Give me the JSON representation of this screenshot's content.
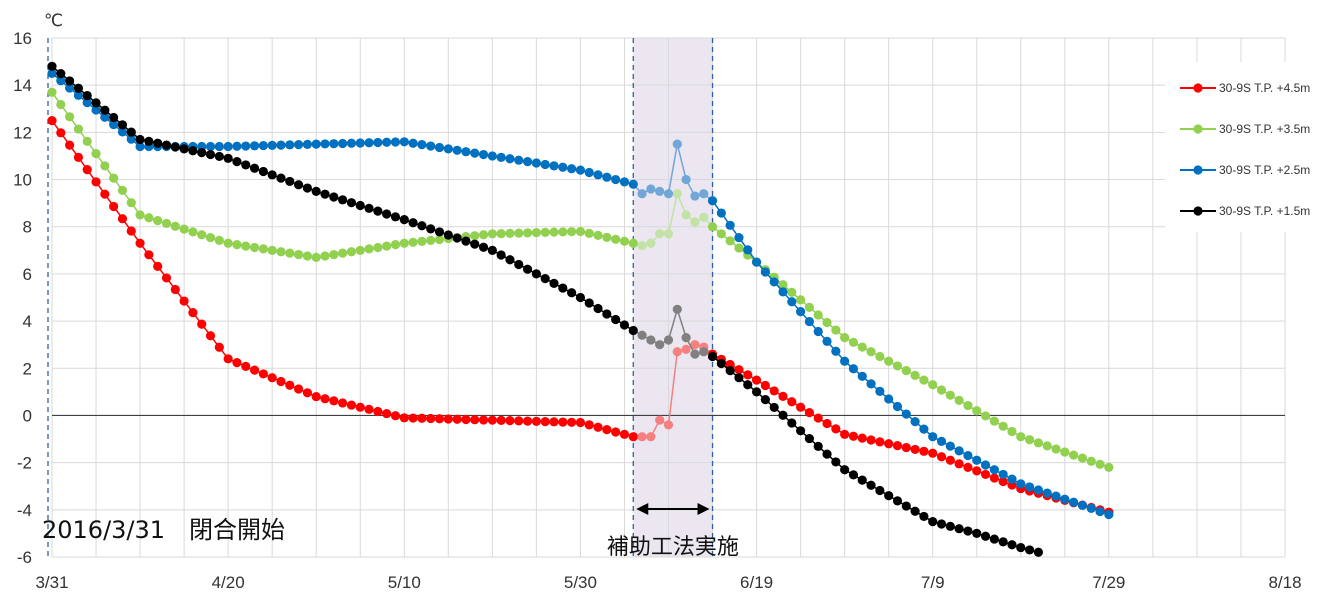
{
  "chart_data": {
    "type": "line",
    "ylabel": "℃",
    "ylim": [
      -6,
      16
    ],
    "yticks": [
      16,
      14,
      12,
      10,
      8,
      6,
      4,
      2,
      0,
      -2,
      -4,
      -6
    ],
    "xlim_day": [
      0,
      140
    ],
    "xticks": [
      {
        "label": "3/31",
        "day": 0
      },
      {
        "label": "4/20",
        "day": 20
      },
      {
        "label": "5/10",
        "day": 40
      },
      {
        "label": "5/30",
        "day": 60
      },
      {
        "label": "6/19",
        "day": 80
      },
      {
        "label": "7/9",
        "day": 100
      },
      {
        "label": "7/29",
        "day": 120
      },
      {
        "label": "8/18",
        "day": 140
      }
    ],
    "grid": true,
    "legend_position": "right",
    "highlight_span": {
      "start_day": 66,
      "end_day": 75,
      "color": "#ebe6f0"
    },
    "vertical_lines_day": [
      0,
      66,
      75
    ],
    "annotations": [
      {
        "text": "2016/3/31　閉合開始",
        "day": -1,
        "value": -4.9
      },
      {
        "text": "補助工法実施",
        "day": 70.5,
        "value": -5.5
      }
    ],
    "series": [
      {
        "name": "30-9S T.P. +4.5m",
        "color": "#ff0000",
        "faded_color": "#f48080",
        "x": [
          0,
          10,
          20,
          30,
          40,
          50,
          60,
          66,
          67,
          68,
          69,
          70,
          71,
          72,
          73,
          74,
          75,
          80,
          90,
          100,
          110,
          120
        ],
        "values": [
          12.5,
          7.3,
          2.4,
          0.8,
          -0.1,
          -0.2,
          -0.3,
          -0.9,
          -0.9,
          -0.9,
          -0.2,
          -0.4,
          2.7,
          2.8,
          3.0,
          2.9,
          2.6,
          1.5,
          -0.8,
          -1.6,
          -3.1,
          -4.1
        ]
      },
      {
        "name": "30-9S T.P. +3.5m",
        "color": "#92d050",
        "faded_color": "#c3e3a6",
        "x": [
          0,
          10,
          20,
          30,
          40,
          50,
          60,
          66,
          67,
          68,
          69,
          70,
          71,
          72,
          73,
          74,
          75,
          80,
          90,
          100,
          110,
          120
        ],
        "values": [
          13.7,
          8.5,
          7.3,
          6.7,
          7.3,
          7.7,
          7.8,
          7.3,
          7.2,
          7.3,
          7.7,
          7.7,
          9.4,
          8.5,
          8.2,
          8.4,
          8.0,
          6.5,
          3.3,
          1.3,
          -0.9,
          -2.2
        ]
      },
      {
        "name": "30-9S T.P. +2.5m",
        "color": "#0070c0",
        "faded_color": "#70a7d8",
        "x": [
          0,
          10,
          20,
          30,
          40,
          50,
          60,
          66,
          67,
          68,
          69,
          70,
          71,
          72,
          73,
          74,
          75,
          80,
          90,
          100,
          110,
          120
        ],
        "values": [
          14.5,
          11.4,
          11.4,
          11.5,
          11.6,
          11.0,
          10.4,
          9.8,
          9.4,
          9.6,
          9.5,
          9.4,
          11.5,
          10.0,
          9.3,
          9.4,
          9.1,
          6.5,
          2.3,
          -0.9,
          -2.9,
          -4.2
        ]
      },
      {
        "name": "30-9S T.P. +1.5m",
        "color": "#000000",
        "faded_color": "#808080",
        "x": [
          0,
          10,
          20,
          30,
          40,
          50,
          60,
          66,
          67,
          68,
          69,
          70,
          71,
          72,
          73,
          74,
          75,
          80,
          90,
          100,
          105,
          110,
          112
        ],
        "values": [
          14.8,
          11.7,
          10.9,
          9.5,
          8.3,
          7.0,
          5.0,
          3.6,
          3.4,
          3.2,
          3.0,
          3.2,
          4.5,
          3.3,
          2.6,
          2.7,
          2.5,
          1.0,
          -2.3,
          -4.5,
          -5.0,
          -5.6,
          -5.8
        ]
      }
    ]
  }
}
